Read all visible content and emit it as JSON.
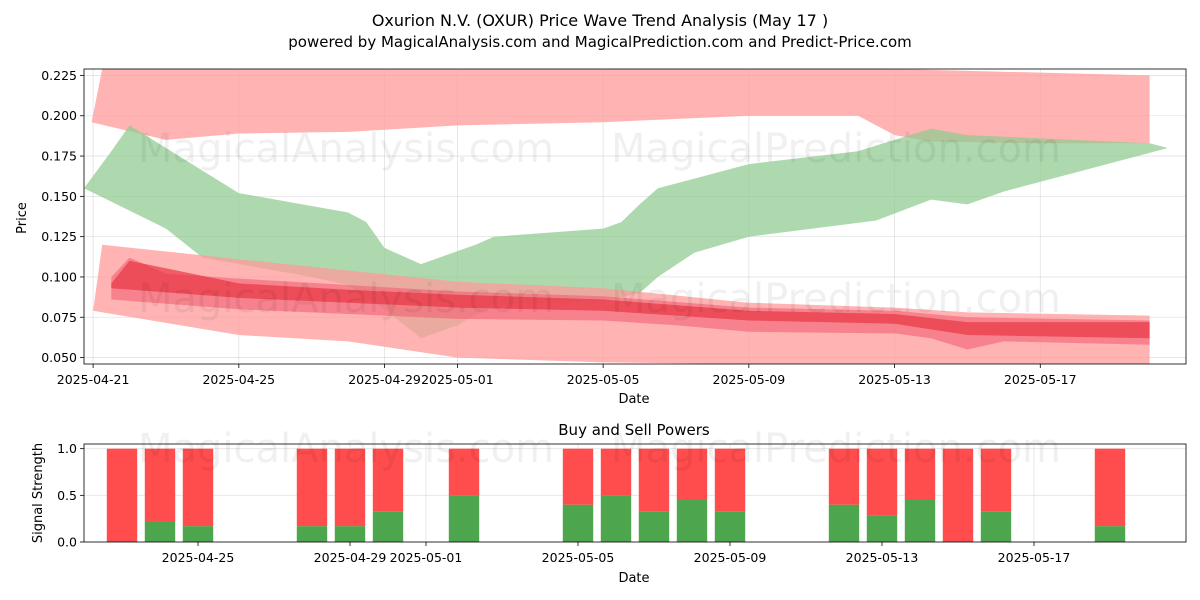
{
  "figure": {
    "title": "Oxurion N.V. (OXUR) Price Wave Trend Analysis (May 17 )",
    "subtitle": "powered by MagicalAnalysis.com and MagicalPrediction.com and Predict-Price.com",
    "watermarks": [
      "MagicalAnalysis.com",
      "MagicalPrediction.com"
    ]
  },
  "chart_data": [
    {
      "type": "area",
      "title": "",
      "xlabel": "Date",
      "ylabel": "Price",
      "xlim": [
        "2025-04-20 18:00",
        "2025-05-21 00:00"
      ],
      "ylim": [
        0.046,
        0.229
      ],
      "x_ticks": [
        "2025-04-21",
        "2025-04-25",
        "2025-04-29",
        "2025-05-01",
        "2025-05-05",
        "2025-05-09",
        "2025-05-13",
        "2025-05-17"
      ],
      "y_ticks": [
        0.05,
        0.075,
        0.1,
        0.125,
        0.15,
        0.175,
        0.2,
        0.225
      ],
      "y_tick_labels": [
        "0.050",
        "0.075",
        "0.100",
        "0.125",
        "0.150",
        "0.175",
        "0.200",
        "0.225"
      ],
      "grid": true,
      "bands": [
        {
          "color": "#ff9a9a",
          "upper": [
            [
              "2025-04-20 23:00",
              0.196
            ],
            [
              "2025-04-21 06:00",
              0.229
            ],
            [
              "2025-05-13 00:00",
              0.229
            ],
            [
              "2025-05-20 00:00",
              0.225
            ]
          ],
          "lower": [
            [
              "2025-04-20 23:00",
              0.196
            ],
            [
              "2025-04-23 00:00",
              0.185
            ],
            [
              "2025-04-25 00:00",
              0.189
            ],
            [
              "2025-04-28 00:00",
              0.19
            ],
            [
              "2025-05-01 00:00",
              0.194
            ],
            [
              "2025-05-05 00:00",
              0.196
            ],
            [
              "2025-05-09 00:00",
              0.2
            ],
            [
              "2025-05-12 00:00",
              0.2
            ],
            [
              "2025-05-13 00:00",
              0.188
            ],
            [
              "2025-05-14 00:00",
              0.184
            ],
            [
              "2025-05-17 00:00",
              0.183
            ],
            [
              "2025-05-20 00:00",
              0.183
            ]
          ]
        },
        {
          "color": "#8fca8f",
          "upper": [
            [
              "2025-04-20 18:00",
              0.155
            ],
            [
              "2025-04-21 12:00",
              0.178
            ],
            [
              "2025-04-22 00:00",
              0.194
            ],
            [
              "2025-04-25 00:00",
              0.152
            ],
            [
              "2025-04-28 00:00",
              0.14
            ],
            [
              "2025-04-28 12:00",
              0.134
            ],
            [
              "2025-04-29 00:00",
              0.118
            ],
            [
              "2025-04-30 00:00",
              0.108
            ],
            [
              "2025-05-01 12:00",
              0.12
            ],
            [
              "2025-05-02 00:00",
              0.125
            ],
            [
              "2025-05-05 00:00",
              0.13
            ],
            [
              "2025-05-05 12:00",
              0.134
            ],
            [
              "2025-05-06 00:00",
              0.145
            ],
            [
              "2025-05-06 12:00",
              0.155
            ],
            [
              "2025-05-07 00:00",
              0.158
            ],
            [
              "2025-05-09 00:00",
              0.17
            ],
            [
              "2025-05-12 00:00",
              0.178
            ],
            [
              "2025-05-14 00:00",
              0.192
            ],
            [
              "2025-05-15 00:00",
              0.188
            ],
            [
              "2025-05-20 00:00",
              0.183
            ]
          ],
          "lower": [
            [
              "2025-04-20 18:00",
              0.155
            ],
            [
              "2025-04-23 00:00",
              0.13
            ],
            [
              "2025-04-24 00:00",
              0.112
            ],
            [
              "2025-04-27 00:00",
              0.1
            ],
            [
              "2025-04-28 00:00",
              0.095
            ],
            [
              "2025-04-29 00:00",
              0.08
            ],
            [
              "2025-04-30 00:00",
              0.062
            ],
            [
              "2025-05-01 00:00",
              0.07
            ],
            [
              "2025-05-02 00:00",
              0.083
            ],
            [
              "2025-05-05 00:00",
              0.085
            ],
            [
              "2025-05-06 00:00",
              0.09
            ],
            [
              "2025-05-06 12:00",
              0.1
            ],
            [
              "2025-05-07 12:00",
              0.115
            ],
            [
              "2025-05-09 00:00",
              0.125
            ],
            [
              "2025-05-12 12:00",
              0.135
            ],
            [
              "2025-05-14 00:00",
              0.148
            ],
            [
              "2025-05-15 00:00",
              0.145
            ],
            [
              "2025-05-16 00:00",
              0.153
            ],
            [
              "2025-05-20 12:00",
              0.18
            ]
          ]
        },
        {
          "color": "#ff9a9a",
          "upper": [
            [
              "2025-04-21 00:00",
              0.079
            ],
            [
              "2025-04-21 06:00",
              0.12
            ],
            [
              "2025-04-25 00:00",
              0.111
            ],
            [
              "2025-04-28 00:00",
              0.104
            ],
            [
              "2025-05-01 00:00",
              0.097
            ],
            [
              "2025-05-05 00:00",
              0.093
            ],
            [
              "2025-05-09 00:00",
              0.084
            ],
            [
              "2025-05-13 00:00",
              0.081
            ],
            [
              "2025-05-15 00:00",
              0.078
            ],
            [
              "2025-05-20 00:00",
              0.076
            ]
          ],
          "lower": [
            [
              "2025-04-21 00:00",
              0.079
            ],
            [
              "2025-04-25 00:00",
              0.064
            ],
            [
              "2025-04-28 00:00",
              0.06
            ],
            [
              "2025-05-01 00:00",
              0.05
            ],
            [
              "2025-05-05 00:00",
              0.047
            ],
            [
              "2025-05-09 00:00",
              0.046
            ],
            [
              "2025-05-15 00:00",
              0.046
            ],
            [
              "2025-05-20 00:00",
              0.046
            ]
          ]
        },
        {
          "color": "#f05a6e",
          "upper": [
            [
              "2025-04-21 12:00",
              0.1
            ],
            [
              "2025-04-22 00:00",
              0.112
            ],
            [
              "2025-04-23 00:00",
              0.102
            ],
            [
              "2025-04-25 00:00",
              0.099
            ],
            [
              "2025-04-28 00:00",
              0.095
            ],
            [
              "2025-05-01 00:00",
              0.091
            ],
            [
              "2025-05-05 00:00",
              0.088
            ],
            [
              "2025-05-09 00:00",
              0.081
            ],
            [
              "2025-05-13 00:00",
              0.079
            ],
            [
              "2025-05-15 00:00",
              0.075
            ],
            [
              "2025-05-20 00:00",
              0.073
            ]
          ],
          "lower": [
            [
              "2025-04-21 12:00",
              0.086
            ],
            [
              "2025-04-25 00:00",
              0.08
            ],
            [
              "2025-04-28 00:00",
              0.077
            ],
            [
              "2025-05-01 00:00",
              0.074
            ],
            [
              "2025-05-05 00:00",
              0.073
            ],
            [
              "2025-05-07 00:00",
              0.07
            ],
            [
              "2025-05-09 00:00",
              0.066
            ],
            [
              "2025-05-13 00:00",
              0.065
            ],
            [
              "2025-05-14 00:00",
              0.062
            ],
            [
              "2025-05-15 00:00",
              0.055
            ],
            [
              "2025-05-16 00:00",
              0.06
            ],
            [
              "2025-05-20 00:00",
              0.058
            ]
          ]
        },
        {
          "color": "#e8303e",
          "upper": [
            [
              "2025-04-21 12:00",
              0.096
            ],
            [
              "2025-04-22 00:00",
              0.11
            ],
            [
              "2025-04-25 00:00",
              0.096
            ],
            [
              "2025-04-28 00:00",
              0.092
            ],
            [
              "2025-05-01 00:00",
              0.089
            ],
            [
              "2025-05-05 00:00",
              0.086
            ],
            [
              "2025-05-09 00:00",
              0.079
            ],
            [
              "2025-05-13 00:00",
              0.077
            ],
            [
              "2025-05-15 00:00",
              0.072
            ],
            [
              "2025-05-20 00:00",
              0.072
            ]
          ],
          "lower": [
            [
              "2025-04-21 12:00",
              0.093
            ],
            [
              "2025-04-25 00:00",
              0.087
            ],
            [
              "2025-04-28 00:00",
              0.084
            ],
            [
              "2025-05-01 00:00",
              0.081
            ],
            [
              "2025-05-05 00:00",
              0.079
            ],
            [
              "2025-05-09 00:00",
              0.073
            ],
            [
              "2025-05-13 00:00",
              0.071
            ],
            [
              "2025-05-15 00:00",
              0.064
            ],
            [
              "2025-05-20 00:00",
              0.062
            ]
          ]
        }
      ],
      "watermark": "MagicalPrediction.com"
    },
    {
      "type": "bar",
      "stacked": true,
      "title": "Buy and Sell Powers",
      "xlabel": "Date",
      "ylabel": "Signal Strength",
      "ylim": [
        0,
        1.05
      ],
      "y_ticks": [
        0.0,
        0.5,
        1.0
      ],
      "y_tick_labels": [
        "0.0",
        "0.5",
        "1.0"
      ],
      "x_ticks": [
        "2025-04-25",
        "2025-04-29",
        "2025-05-01",
        "2025-05-05",
        "2025-05-09",
        "2025-05-13",
        "2025-05-17"
      ],
      "xlim": [
        "2025-04-22 00:00",
        "2025-05-21 00:00"
      ],
      "grid": true,
      "series": [
        {
          "name": "Buy",
          "color": "#4da64d"
        },
        {
          "name": "Sell",
          "color": "#ff4d4d"
        }
      ],
      "bars": [
        {
          "date": "2025-04-23",
          "buy": 0.0,
          "sell": 1.0
        },
        {
          "date": "2025-04-24",
          "buy": 0.22,
          "sell": 0.78
        },
        {
          "date": "2025-04-25",
          "buy": 0.17,
          "sell": 0.83
        },
        {
          "date": "2025-04-28",
          "buy": 0.17,
          "sell": 0.83
        },
        {
          "date": "2025-04-29",
          "buy": 0.17,
          "sell": 0.83
        },
        {
          "date": "2025-04-30",
          "buy": 0.33,
          "sell": 0.67
        },
        {
          "date": "2025-05-02",
          "buy": 0.5,
          "sell": 0.5
        },
        {
          "date": "2025-05-05",
          "buy": 0.4,
          "sell": 0.6
        },
        {
          "date": "2025-05-06",
          "buy": 0.5,
          "sell": 0.5
        },
        {
          "date": "2025-05-07",
          "buy": 0.33,
          "sell": 0.67
        },
        {
          "date": "2025-05-08",
          "buy": 0.45,
          "sell": 0.55
        },
        {
          "date": "2025-05-09",
          "buy": 0.33,
          "sell": 0.67
        },
        {
          "date": "2025-05-12",
          "buy": 0.4,
          "sell": 0.6
        },
        {
          "date": "2025-05-13",
          "buy": 0.28,
          "sell": 0.72
        },
        {
          "date": "2025-05-14",
          "buy": 0.45,
          "sell": 0.55
        },
        {
          "date": "2025-05-15",
          "buy": 0.0,
          "sell": 1.0
        },
        {
          "date": "2025-05-16",
          "buy": 0.33,
          "sell": 0.67
        },
        {
          "date": "2025-05-19",
          "buy": 0.17,
          "sell": 0.83
        }
      ],
      "watermark": "MagicalAnalysis.com"
    }
  ]
}
